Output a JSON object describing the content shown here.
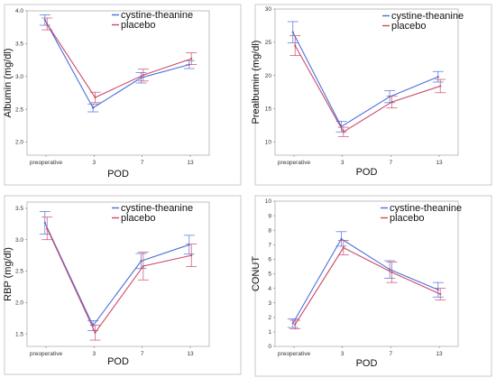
{
  "colors": {
    "cystine_theanine": "#4a6fdc",
    "placebo": "#cc4a66"
  },
  "legend": {
    "series_a": "cystine-theanine",
    "series_b": "placebo"
  },
  "chart_data": [
    {
      "type": "line",
      "xlabel": "POD",
      "ylabel": "Albumin (mg/dl)",
      "categories": [
        "preoperative",
        "3",
        "7",
        "13"
      ],
      "ylim": [
        1.8,
        4.0
      ],
      "yticks": [
        2.0,
        2.5,
        3.0,
        3.5,
        4.0
      ],
      "yticklabels": [
        "2.0",
        "2.5",
        "3.0",
        "3.5",
        "4.0"
      ],
      "legend_position": "top-right",
      "series": [
        {
          "name": "cystine-theanine",
          "values": [
            3.86,
            2.52,
            2.98,
            3.18
          ],
          "err": [
            0.08,
            0.06,
            0.08,
            0.06
          ]
        },
        {
          "name": "placebo",
          "values": [
            3.8,
            2.68,
            3.02,
            3.27
          ],
          "err": [
            0.09,
            0.08,
            0.09,
            0.09
          ]
        }
      ]
    },
    {
      "type": "line",
      "xlabel": "POD",
      "ylabel": "Prealbumin (mg/dl)",
      "categories": [
        "preoperative",
        "3",
        "7",
        "13"
      ],
      "ylim": [
        8,
        30
      ],
      "yticks": [
        10,
        15,
        20,
        25,
        30
      ],
      "yticklabels": [
        "10",
        "15",
        "20",
        "25",
        "30"
      ],
      "legend_position": "top-right",
      "series": [
        {
          "name": "cystine-theanine",
          "values": [
            26.5,
            12.3,
            16.8,
            19.8
          ],
          "err": [
            1.6,
            0.8,
            0.9,
            0.8
          ]
        },
        {
          "name": "placebo",
          "values": [
            24.5,
            11.5,
            16.0,
            18.4
          ],
          "err": [
            1.5,
            0.7,
            0.9,
            1.0
          ]
        }
      ]
    },
    {
      "type": "line",
      "xlabel": "POD",
      "ylabel": "RBP (mg/dl)",
      "categories": [
        "preoperative",
        "3",
        "7",
        "13"
      ],
      "ylim": [
        1.3,
        3.6
      ],
      "yticks": [
        1.5,
        2.0,
        2.5,
        3.0,
        3.5
      ],
      "yticklabels": [
        "1.5",
        "2.0",
        "2.5",
        "3.0",
        "3.5"
      ],
      "legend_position": "top-right",
      "series": [
        {
          "name": "cystine-theanine",
          "values": [
            3.27,
            1.63,
            2.66,
            2.92
          ],
          "err": [
            0.18,
            0.08,
            0.12,
            0.15
          ]
        },
        {
          "name": "placebo",
          "values": [
            3.18,
            1.52,
            2.58,
            2.75
          ],
          "err": [
            0.18,
            0.12,
            0.22,
            0.18
          ]
        }
      ]
    },
    {
      "type": "line",
      "xlabel": "POD",
      "ylabel": "CONUT",
      "categories": [
        "preoperative",
        "3",
        "7",
        "13"
      ],
      "ylim": [
        0,
        10
      ],
      "yticks": [
        0,
        1,
        2,
        3,
        4,
        5,
        6,
        7,
        8,
        9,
        10
      ],
      "yticklabels": [
        "0",
        "1",
        "2",
        "3",
        "4",
        "5",
        "6",
        "7",
        "8",
        "9",
        "10"
      ],
      "legend_position": "top-right",
      "series": [
        {
          "name": "cystine-theanine",
          "values": [
            1.6,
            7.4,
            5.3,
            3.9
          ],
          "err": [
            0.3,
            0.5,
            0.6,
            0.5
          ]
        },
        {
          "name": "placebo",
          "values": [
            1.5,
            6.8,
            5.1,
            3.6
          ],
          "err": [
            0.3,
            0.5,
            0.7,
            0.4
          ]
        }
      ]
    }
  ]
}
